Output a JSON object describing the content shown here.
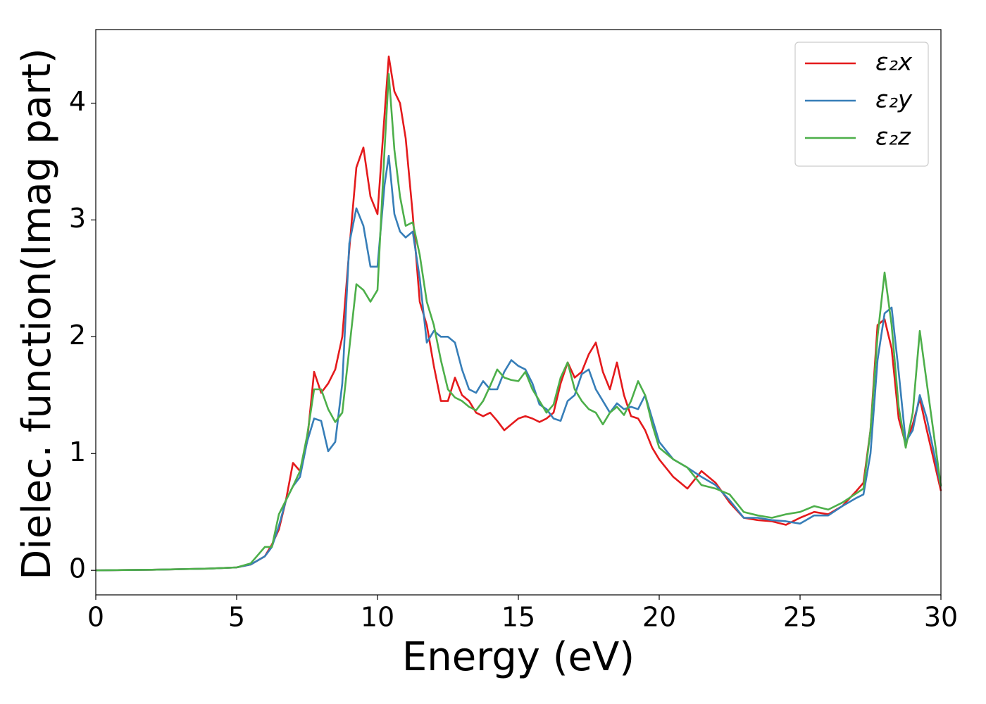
{
  "chart_data": {
    "type": "line",
    "xlabel": "Energy (eV)",
    "ylabel": "Dielec. function(Imag part)",
    "xlim": [
      0,
      30
    ],
    "ylim": [
      -0.21,
      4.63
    ],
    "xticks": [
      0,
      5,
      10,
      15,
      20,
      25,
      30
    ],
    "yticks": [
      0,
      1,
      2,
      3,
      4
    ],
    "legend": "upper right",
    "x": [
      0,
      1,
      2,
      3,
      4,
      5,
      5.5,
      6,
      6.25,
      6.5,
      6.75,
      7,
      7.25,
      7.5,
      7.75,
      8,
      8.25,
      8.5,
      8.75,
      9,
      9.25,
      9.5,
      9.75,
      10,
      10.25,
      10.4,
      10.6,
      10.8,
      11,
      11.25,
      11.5,
      11.75,
      12,
      12.25,
      12.5,
      12.75,
      13,
      13.25,
      13.5,
      13.75,
      14,
      14.25,
      14.5,
      14.75,
      15,
      15.25,
      15.5,
      15.75,
      16,
      16.25,
      16.5,
      16.75,
      17,
      17.25,
      17.5,
      17.75,
      18,
      18.25,
      18.5,
      18.75,
      19,
      19.25,
      19.5,
      19.75,
      20,
      20.5,
      21,
      21.5,
      22,
      22.5,
      23,
      23.5,
      24,
      24.5,
      25,
      25.5,
      26,
      26.5,
      27,
      27.25,
      27.5,
      27.75,
      28,
      28.25,
      28.5,
      28.75,
      29,
      29.25,
      29.5,
      30
    ],
    "series": [
      {
        "name": "ε₂x",
        "color": "#e41a1c",
        "values": [
          0,
          0.003,
          0.005,
          0.01,
          0.015,
          0.025,
          0.05,
          0.12,
          0.22,
          0.35,
          0.6,
          0.92,
          0.85,
          1.1,
          1.7,
          1.52,
          1.6,
          1.72,
          2.0,
          2.75,
          3.45,
          3.62,
          3.2,
          3.05,
          3.9,
          4.4,
          4.1,
          4.0,
          3.7,
          3.05,
          2.3,
          2.1,
          1.75,
          1.45,
          1.45,
          1.65,
          1.5,
          1.45,
          1.35,
          1.32,
          1.35,
          1.28,
          1.2,
          1.25,
          1.3,
          1.32,
          1.3,
          1.27,
          1.3,
          1.35,
          1.6,
          1.78,
          1.65,
          1.7,
          1.85,
          1.95,
          1.7,
          1.55,
          1.78,
          1.5,
          1.32,
          1.3,
          1.2,
          1.05,
          0.95,
          0.8,
          0.7,
          0.85,
          0.75,
          0.58,
          0.45,
          0.43,
          0.42,
          0.39,
          0.45,
          0.5,
          0.48,
          0.55,
          0.68,
          0.75,
          1.2,
          2.1,
          2.15,
          1.9,
          1.3,
          1.08,
          1.25,
          1.47,
          1.2,
          0.68
        ]
      },
      {
        "name": "ε₂y",
        "color": "#377eb8",
        "values": [
          0,
          0.003,
          0.005,
          0.01,
          0.015,
          0.025,
          0.05,
          0.12,
          0.2,
          0.38,
          0.6,
          0.72,
          0.8,
          1.1,
          1.3,
          1.28,
          1.02,
          1.1,
          1.6,
          2.8,
          3.1,
          2.95,
          2.6,
          2.6,
          3.3,
          3.55,
          3.05,
          2.9,
          2.85,
          2.9,
          2.5,
          1.95,
          2.05,
          2.0,
          2.0,
          1.95,
          1.72,
          1.55,
          1.52,
          1.62,
          1.55,
          1.55,
          1.7,
          1.8,
          1.75,
          1.72,
          1.6,
          1.42,
          1.38,
          1.3,
          1.28,
          1.45,
          1.5,
          1.68,
          1.72,
          1.55,
          1.45,
          1.35,
          1.43,
          1.38,
          1.4,
          1.38,
          1.5,
          1.3,
          1.1,
          0.95,
          0.88,
          0.8,
          0.73,
          0.6,
          0.45,
          0.45,
          0.43,
          0.42,
          0.4,
          0.47,
          0.47,
          0.55,
          0.62,
          0.65,
          1.0,
          1.8,
          2.2,
          2.25,
          1.7,
          1.1,
          1.2,
          1.5,
          1.3,
          0.72
        ]
      },
      {
        "name": "ε₂z",
        "color": "#4daf4a",
        "values": [
          0,
          0.003,
          0.005,
          0.01,
          0.015,
          0.025,
          0.06,
          0.2,
          0.2,
          0.48,
          0.6,
          0.72,
          0.85,
          1.15,
          1.55,
          1.55,
          1.38,
          1.27,
          1.35,
          1.9,
          2.45,
          2.4,
          2.3,
          2.4,
          3.6,
          4.25,
          3.6,
          3.2,
          2.95,
          2.98,
          2.7,
          2.3,
          2.1,
          1.8,
          1.55,
          1.48,
          1.45,
          1.4,
          1.37,
          1.45,
          1.58,
          1.72,
          1.65,
          1.63,
          1.62,
          1.7,
          1.55,
          1.45,
          1.35,
          1.42,
          1.65,
          1.78,
          1.55,
          1.45,
          1.38,
          1.35,
          1.25,
          1.35,
          1.4,
          1.33,
          1.45,
          1.62,
          1.5,
          1.25,
          1.05,
          0.95,
          0.88,
          0.73,
          0.7,
          0.65,
          0.5,
          0.47,
          0.45,
          0.48,
          0.5,
          0.55,
          0.52,
          0.58,
          0.66,
          0.7,
          1.2,
          2.0,
          2.55,
          2.1,
          1.4,
          1.05,
          1.35,
          2.05,
          1.6,
          0.72
        ]
      }
    ]
  }
}
